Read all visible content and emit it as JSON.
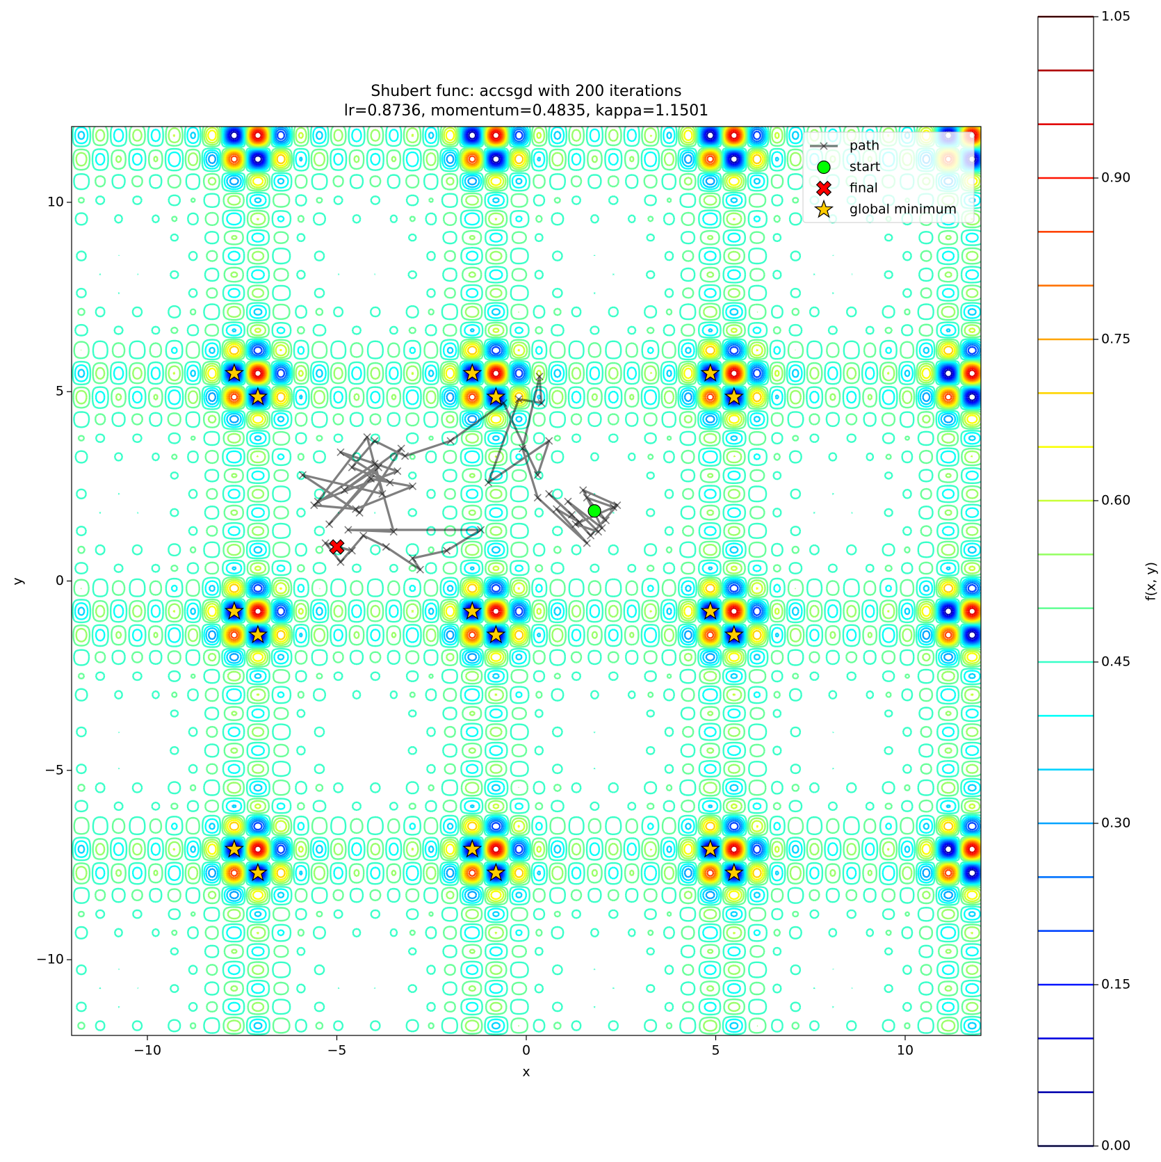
{
  "chart_data": {
    "type": "contour",
    "title": "Shubert func: accsgd with 200 iterations",
    "subtitle": "lr=0.8736, momentum=0.4835, kappa=1.1501",
    "xlabel": "x",
    "ylabel": "y",
    "colorbar_label": "f(x, y)",
    "colormap": "jet",
    "levels": [
      0,
      0.05,
      0.1,
      0.15,
      0.2,
      0.25,
      0.3,
      0.35,
      0.4,
      0.45,
      0.5,
      0.55,
      0.6,
      0.65,
      0.7,
      0.75,
      0.8,
      0.85,
      0.9,
      0.95,
      1.0,
      1.05
    ],
    "clim": [
      0,
      1.05
    ],
    "cticks": [
      {
        "value": 0,
        "label": "0.00"
      },
      {
        "value": 0.15,
        "label": "0.15"
      },
      {
        "value": 0.3,
        "label": "0.30"
      },
      {
        "value": 0.45,
        "label": "0.45"
      },
      {
        "value": 0.6,
        "label": "0.60"
      },
      {
        "value": 0.75,
        "label": "0.75"
      },
      {
        "value": 0.9,
        "label": "0.90"
      },
      {
        "value": 1.05,
        "label": "1.05"
      }
    ],
    "xlim": [
      -12,
      12
    ],
    "ylim": [
      -12,
      12
    ],
    "xticks": [
      {
        "value": -10,
        "label": "−10"
      },
      {
        "value": -5,
        "label": "−5"
      },
      0,
      5,
      10
    ],
    "yticks": [
      {
        "value": -10,
        "label": "−10"
      },
      {
        "value": -5,
        "label": "−5"
      },
      0,
      5,
      10
    ],
    "legend": "upper right",
    "series": [
      {
        "name": "path",
        "color": "#000000",
        "marker": "x",
        "x": [
          1.8,
          2.1,
          1.6,
          2.3,
          1.3,
          1.9,
          1.1,
          2.0,
          1.5,
          2.4,
          1.7,
          1.2,
          0.6,
          1.4,
          0.8,
          1.6,
          0.3,
          -0.1,
          0.35,
          0.4,
          -0.2,
          -1.0,
          0.6,
          0.3,
          -0.6,
          -2.0,
          -3.2,
          -4.0,
          -4.6,
          -3.6,
          -4.9,
          -3.4,
          -5.5,
          -4.2,
          -3.8,
          -5.9,
          -4.4,
          -3.3,
          -4.8,
          -3.9,
          -5.2,
          -4.1,
          -3.0,
          -4.5,
          -5.6,
          -4.0,
          -3.5,
          -4.7,
          -1.2,
          -2.1,
          -3.0,
          -2.8,
          -3.7,
          -4.3,
          -4.9,
          -5.3,
          -4.6,
          -5.0
        ],
        "y": [
          1.85,
          1.6,
          2.2,
          1.95,
          1.5,
          1.3,
          2.1,
          1.4,
          2.4,
          2.0,
          1.2,
          1.75,
          2.3,
          1.55,
          1.9,
          1.0,
          2.2,
          3.5,
          5.4,
          4.7,
          4.8,
          2.6,
          3.7,
          2.8,
          4.7,
          3.7,
          3.3,
          3.7,
          3.0,
          2.6,
          3.4,
          2.9,
          2.1,
          3.8,
          2.3,
          2.8,
          1.8,
          3.5,
          2.4,
          3.0,
          1.5,
          2.7,
          2.5,
          1.9,
          2.0,
          3.1,
          1.3,
          1.35,
          1.35,
          0.8,
          0.6,
          0.3,
          0.9,
          1.2,
          0.5,
          1.0,
          0.8,
          0.9
        ]
      },
      {
        "name": "start",
        "color": "#00ff00",
        "marker": "o",
        "x": [
          1.8
        ],
        "y": [
          1.85
        ]
      },
      {
        "name": "final",
        "color": "#ff0000",
        "marker": "X",
        "x": [
          -5.0
        ],
        "y": [
          0.9
        ]
      },
      {
        "name": "global minimum",
        "color": "#ffcc00",
        "marker": "*",
        "x": [
          -7.0835,
          -7.0835,
          -1.4251,
          5.4828,
          -1.4251,
          4.858,
          -7.0835,
          -7.7083,
          -7.7083,
          -0.8003,
          -0.8003,
          -0.8003,
          -1.4251,
          5.4828,
          4.858,
          5.4828,
          4.858,
          -7.7083
        ],
        "y": [
          4.858,
          -7.7083,
          -7.0835,
          4.858,
          -0.8003,
          5.4828,
          -1.4251,
          -7.0835,
          -0.8003,
          -7.7083,
          -1.4251,
          4.858,
          5.4828,
          -7.7083,
          -7.0835,
          -1.4251,
          -0.8003,
          5.4828
        ]
      }
    ]
  }
}
